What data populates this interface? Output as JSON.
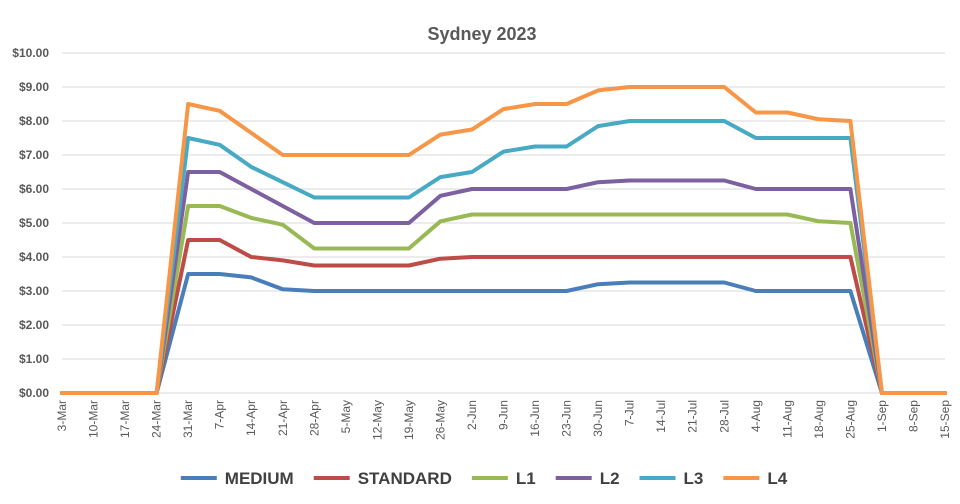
{
  "chart_data": {
    "type": "line",
    "title": "Sydney 2023",
    "xlabel": "",
    "ylabel": "",
    "ylim": [
      0,
      10
    ],
    "yticks": [
      "$0.00",
      "$1.00",
      "$2.00",
      "$3.00",
      "$4.00",
      "$5.00",
      "$6.00",
      "$7.00",
      "$8.00",
      "$9.00",
      "$10.00"
    ],
    "categories": [
      "3-Mar",
      "10-Mar",
      "17-Mar",
      "24-Mar",
      "31-Mar",
      "7-Apr",
      "14-Apr",
      "21-Apr",
      "28-Apr",
      "5-May",
      "12-May",
      "19-May",
      "26-May",
      "2-Jun",
      "9-Jun",
      "16-Jun",
      "23-Jun",
      "30-Jun",
      "7-Jul",
      "14-Jul",
      "21-Jul",
      "28-Jul",
      "4-Aug",
      "11-Aug",
      "18-Aug",
      "25-Aug",
      "1-Sep",
      "8-Sep",
      "15-Sep"
    ],
    "grid": true,
    "legend_position": "bottom",
    "series": [
      {
        "name": "MEDIUM",
        "color": "#4a7ebb",
        "values": [
          0,
          0,
          0,
          0,
          3.5,
          3.5,
          3.4,
          3.05,
          3,
          3,
          3,
          3,
          3,
          3,
          3,
          3,
          3,
          3.2,
          3.25,
          3.25,
          3.25,
          3.25,
          3,
          3,
          3,
          3,
          0,
          0,
          0
        ]
      },
      {
        "name": "STANDARD",
        "color": "#be4b48",
        "values": [
          0,
          0,
          0,
          0,
          4.5,
          4.5,
          4,
          3.9,
          3.75,
          3.75,
          3.75,
          3.75,
          3.95,
          4,
          4,
          4,
          4,
          4,
          4,
          4,
          4,
          4,
          4,
          4,
          4,
          4,
          0,
          0,
          0
        ]
      },
      {
        "name": "L1",
        "color": "#98b954",
        "values": [
          0,
          0,
          0,
          0,
          5.5,
          5.5,
          5.15,
          4.95,
          4.25,
          4.25,
          4.25,
          4.25,
          5.05,
          5.25,
          5.25,
          5.25,
          5.25,
          5.25,
          5.25,
          5.25,
          5.25,
          5.25,
          5.25,
          5.25,
          5.05,
          5,
          0,
          0,
          0
        ]
      },
      {
        "name": "L2",
        "color": "#7d60a0",
        "values": [
          0,
          0,
          0,
          0,
          6.5,
          6.5,
          6,
          5.5,
          5,
          5,
          5,
          5,
          5.8,
          6,
          6,
          6,
          6,
          6.2,
          6.25,
          6.25,
          6.25,
          6.25,
          6,
          6,
          6,
          6,
          0,
          0,
          0
        ]
      },
      {
        "name": "L3",
        "color": "#46aac5",
        "values": [
          0,
          0,
          0,
          0,
          7.5,
          7.3,
          6.65,
          6.2,
          5.75,
          5.75,
          5.75,
          5.75,
          6.35,
          6.5,
          7.1,
          7.25,
          7.25,
          7.85,
          8,
          8,
          8,
          8,
          7.5,
          7.5,
          7.5,
          7.5,
          0,
          0,
          0
        ]
      },
      {
        "name": "L4",
        "color": "#f79646",
        "values": [
          0,
          0,
          0,
          0,
          8.5,
          8.3,
          7.65,
          7,
          7,
          7,
          7,
          7,
          7.6,
          7.75,
          8.35,
          8.5,
          8.5,
          8.9,
          9,
          9,
          9,
          9,
          8.25,
          8.25,
          8.05,
          8,
          0,
          0,
          0
        ]
      }
    ]
  }
}
